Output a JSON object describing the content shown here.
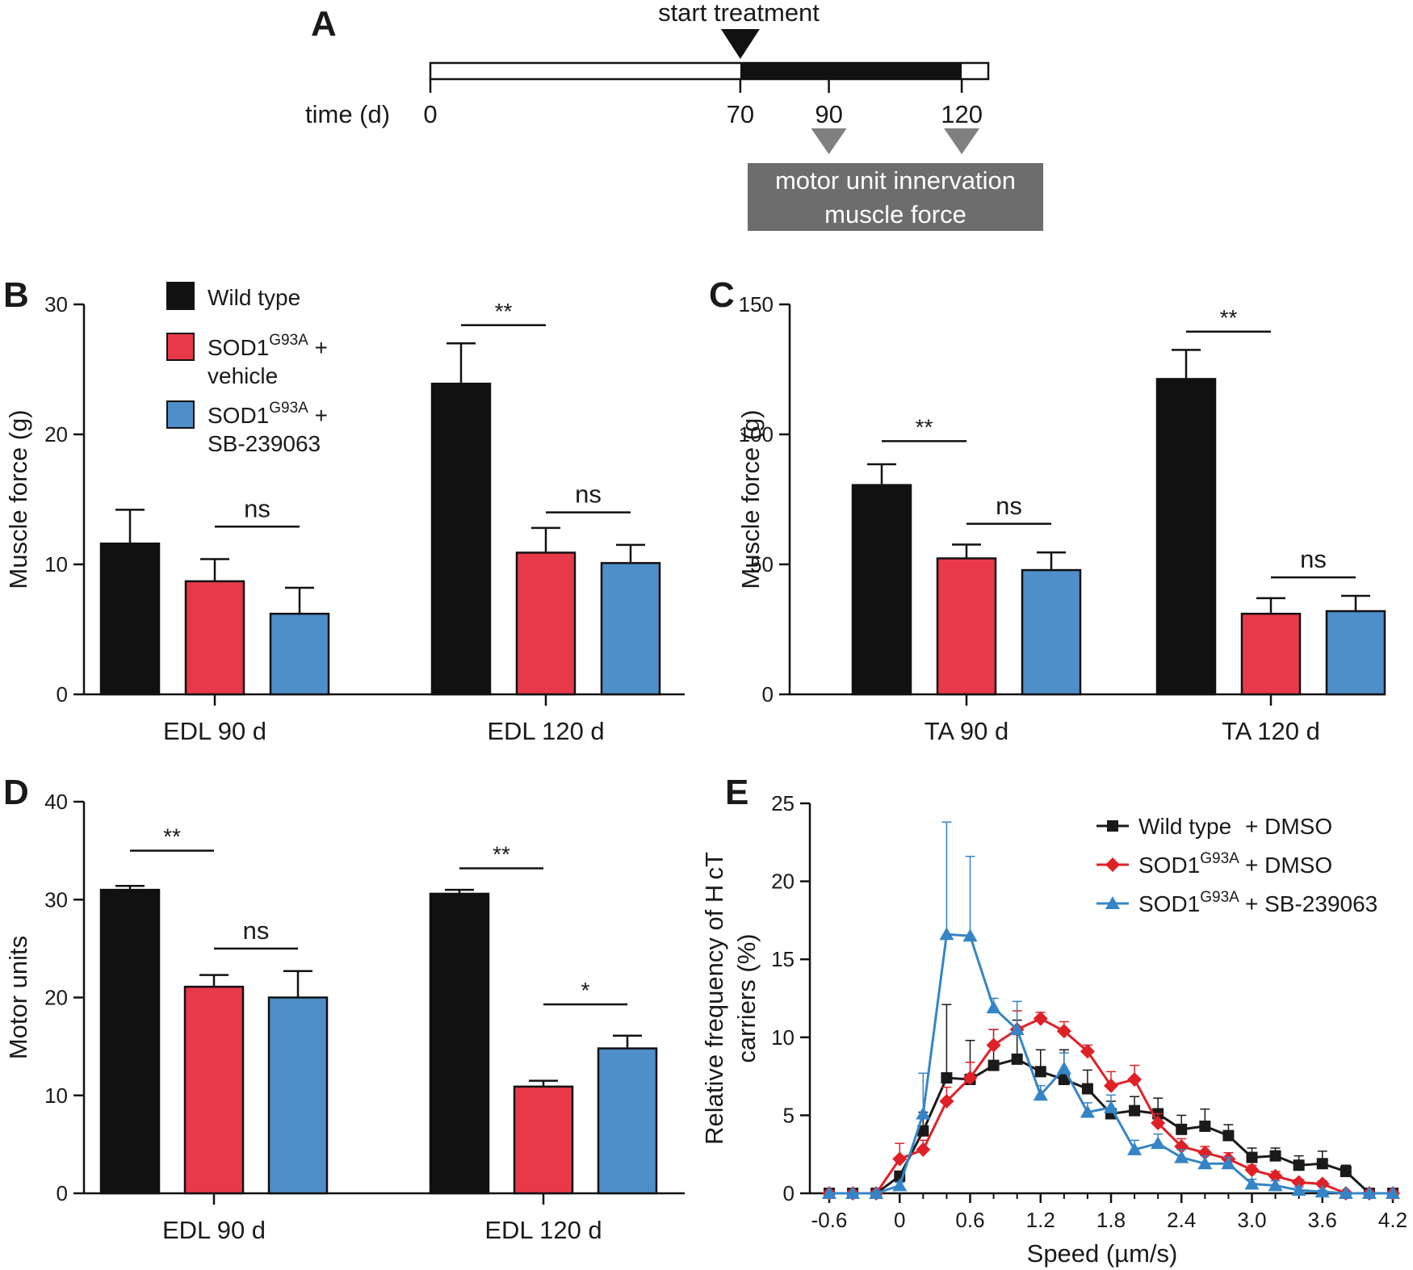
{
  "panels": {
    "A": "A",
    "B": "B",
    "C": "C",
    "D": "D",
    "E": "E"
  },
  "timeline": {
    "start_label": "start treatment",
    "axis_label": "time (d)",
    "ticks": [
      0,
      70,
      90,
      120
    ],
    "domain": [
      0,
      126
    ],
    "treatment_window": [
      70,
      120
    ],
    "measure_days": [
      90,
      120
    ],
    "box_lines": [
      "motor unit innervation",
      "muscle force"
    ]
  },
  "legend_bar": {
    "items": [
      {
        "label": "Wild type",
        "color": "#111111"
      },
      {
        "label": "SOD1",
        "sup": "G93A",
        "label2": "+",
        "line2": "vehicle",
        "color": "#e8394a"
      },
      {
        "label": "SOD1",
        "sup": "G93A",
        "label2": "+",
        "line2": "SB-239063",
        "color": "#4e8ec9"
      }
    ]
  },
  "chart_data": [
    {
      "id": "B",
      "type": "bar",
      "ylabel": "Muscle force (g)",
      "ylim": [
        0,
        30
      ],
      "yticks": [
        0,
        10,
        20,
        30
      ],
      "groups": [
        {
          "label": "EDL 90 d",
          "values": [
            11.6,
            8.7,
            6.2
          ],
          "errors": [
            2.6,
            1.7,
            2.0
          ],
          "sig": [
            {
              "text": "ns",
              "from": 1,
              "to": 2,
              "y": 12.9
            }
          ]
        },
        {
          "label": "EDL 120 d",
          "values": [
            23.9,
            10.9,
            10.1
          ],
          "errors": [
            3.1,
            1.9,
            1.4
          ],
          "sig": [
            {
              "text": "**",
              "from": 0,
              "to": 1,
              "y": 28.4
            },
            {
              "text": "ns",
              "from": 1,
              "to": 2,
              "y": 14.0
            }
          ]
        }
      ]
    },
    {
      "id": "C",
      "type": "bar",
      "ylabel": "Muscle force (g)",
      "ylim": [
        0,
        150
      ],
      "yticks": [
        0,
        50,
        100,
        150
      ],
      "groups": [
        {
          "label": "TA 90 d",
          "values": [
            80.5,
            52.3,
            47.8
          ],
          "errors": [
            8.0,
            5.3,
            6.8
          ],
          "sig": [
            {
              "text": "**",
              "from": 0,
              "to": 1,
              "y": 97.4
            },
            {
              "text": "ns",
              "from": 1,
              "to": 2,
              "y": 65.6
            }
          ]
        },
        {
          "label": "TA 120 d",
          "values": [
            121.3,
            31.0,
            32.0
          ],
          "errors": [
            11.2,
            6.0,
            5.9
          ],
          "sig": [
            {
              "text": "**",
              "from": 0,
              "to": 1,
              "y": 139.5
            },
            {
              "text": "ns",
              "from": 1,
              "to": 2,
              "y": 45.0
            }
          ]
        }
      ]
    },
    {
      "id": "D",
      "type": "bar",
      "ylabel": "Motor units",
      "ylim": [
        0,
        40
      ],
      "yticks": [
        0,
        10,
        20,
        30,
        40
      ],
      "groups": [
        {
          "label": "EDL 90 d",
          "values": [
            31.0,
            21.1,
            20.0
          ],
          "errors": [
            0.4,
            1.2,
            2.7
          ],
          "sig": [
            {
              "text": "**",
              "from": 0,
              "to": 1,
              "y": 35.0
            },
            {
              "text": "ns",
              "from": 1,
              "to": 2,
              "y": 25.0
            }
          ]
        },
        {
          "label": "EDL 120 d",
          "values": [
            30.6,
            10.9,
            14.8
          ],
          "errors": [
            0.4,
            0.6,
            1.3
          ],
          "sig": [
            {
              "text": "**",
              "from": 0,
              "to": 1,
              "y": 33.2
            },
            {
              "text": "*",
              "from": 1,
              "to": 2,
              "y": 19.3
            }
          ]
        }
      ]
    },
    {
      "id": "E",
      "type": "line",
      "xlabel": "Speed (µm/s)",
      "ylabel": "Relative frequency of H ᴄT",
      "ylabel_line2": "carriers (%)",
      "xlim": [
        -0.6,
        4.2
      ],
      "ylim": [
        0,
        25
      ],
      "xticks": [
        "-0.6",
        "0",
        "0.6",
        "1.2",
        "1.8",
        "2.4",
        "3.0",
        "3.6",
        "4.2"
      ],
      "yticks": [
        0,
        5,
        10,
        15,
        20,
        25
      ],
      "x": [
        -0.6,
        -0.4,
        -0.2,
        0,
        0.2,
        0.4,
        0.6,
        0.8,
        1.0,
        1.2,
        1.4,
        1.6,
        1.8,
        2.0,
        2.2,
        2.4,
        2.6,
        2.8,
        3.0,
        3.2,
        3.4,
        3.6,
        3.8,
        4.0,
        4.2
      ],
      "series": [
        {
          "name": "Wild type",
          "suffix": "+ DMSO",
          "marker": "square",
          "color": "#1a1a1a",
          "values": [
            0,
            0,
            0,
            1.1,
            4.0,
            7.4,
            7.3,
            8.2,
            8.6,
            7.8,
            7.3,
            6.7,
            5.1,
            5.3,
            5.1,
            4.1,
            4.3,
            3.7,
            2.3,
            2.4,
            1.8,
            1.9,
            1.4,
            0,
            0
          ],
          "errors": [
            0,
            0,
            0,
            0.3,
            1.2,
            4.7,
            2.5,
            2.3,
            2.5,
            1.4,
            1.9,
            1.2,
            0.8,
            0.9,
            1.0,
            0.9,
            1.1,
            0.7,
            0.6,
            0.5,
            0.6,
            0.8,
            0.4,
            0,
            0
          ]
        },
        {
          "name": "SOD1",
          "sup": "G93A",
          "suffix": "+ DMSO",
          "marker": "diamond",
          "color": "#e02027",
          "values": [
            0,
            0,
            0,
            2.2,
            2.8,
            5.9,
            7.4,
            9.5,
            10.5,
            11.2,
            10.4,
            9.1,
            6.9,
            7.3,
            4.5,
            3.0,
            2.6,
            2.2,
            1.5,
            1.1,
            0.7,
            0.6,
            0,
            0,
            0
          ],
          "errors": [
            0,
            0,
            0,
            1.0,
            0.6,
            0.9,
            1.0,
            1.0,
            1.2,
            0.4,
            0.6,
            0.4,
            0.9,
            0.9,
            0.6,
            0.5,
            0.4,
            0.4,
            0.3,
            0.3,
            0.2,
            0.2,
            0,
            0,
            0
          ]
        },
        {
          "name": "SOD1",
          "sup": "G93A",
          "suffix": "+ SB-239063",
          "marker": "triangle",
          "color": "#3585c6",
          "values": [
            0,
            0,
            0,
            0.5,
            5.1,
            16.6,
            16.5,
            11.9,
            10.5,
            6.3,
            8.0,
            5.2,
            5.5,
            2.8,
            3.2,
            2.3,
            1.9,
            1.9,
            0.6,
            0.5,
            0.2,
            0.1,
            0,
            0,
            0
          ],
          "errors": [
            0,
            0,
            0,
            0.2,
            2.6,
            7.2,
            5.1,
            0.6,
            1.8,
            0.6,
            1.0,
            0.6,
            0.8,
            0.6,
            0.6,
            0.5,
            0.5,
            0.4,
            0.3,
            0.3,
            0.2,
            0.1,
            0,
            0,
            0
          ]
        }
      ]
    }
  ]
}
